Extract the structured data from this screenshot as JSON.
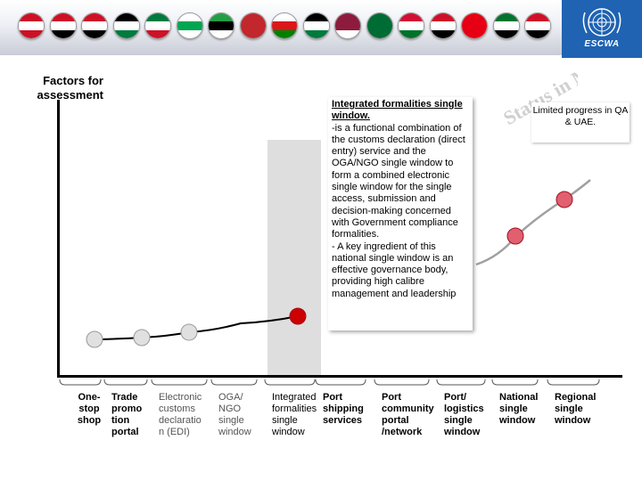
{
  "header": {
    "org": "ESCWA",
    "flag_colors": [
      [
        "#cc1126",
        "#ffffff",
        "#cc1126"
      ],
      [
        "#ce1126",
        "#ffffff",
        "#000000"
      ],
      [
        "#ce1126",
        "#ffffff",
        "#000000"
      ],
      [
        "#000000",
        "#ffffff",
        "#007a3d"
      ],
      [
        "#007a3d",
        "#ffffff",
        "#ce1126"
      ],
      [
        "#ffffff",
        "#00a651",
        "#ffffff"
      ],
      [
        "#239e46",
        "#000000",
        "#ffffff"
      ],
      [
        "#c1272d",
        "#c1272d",
        "#c1272d"
      ],
      [
        "#ffffff",
        "#db161b",
        "#008000"
      ],
      [
        "#000000",
        "#ffffff",
        "#007a3d"
      ],
      [
        "#8d1b3d",
        "#8d1b3d",
        "#ffffff"
      ],
      [
        "#006c35",
        "#006c35",
        "#006c35"
      ],
      [
        "#d21034",
        "#ffffff",
        "#007229"
      ],
      [
        "#ce1126",
        "#ffffff",
        "#000000"
      ],
      [
        "#e70013",
        "#e70013",
        "#e70013"
      ],
      [
        "#00732f",
        "#ffffff",
        "#000000"
      ],
      [
        "#ce1126",
        "#ffffff",
        "#000000"
      ]
    ]
  },
  "labels": {
    "factors": "Factors for assessment",
    "status": "Status in MC"
  },
  "callout": {
    "title": "Integrated formalities single window.",
    "body": "-is a functional combination of the customs declaration (direct entry) service and the OGA/NGO single window to form a combined electronic single window for the single access, submission and decision-making concerned with Government compliance formalities.\n- A key ingredient of this national single window is an effective governance body, providing high calibre management and leadership"
  },
  "note": "Limited progress in QA & UAE.",
  "stages": [
    {
      "label": "One-\nstop\nshop",
      "style": "bold"
    },
    {
      "label": "Trade\npromo\ntion\nportal",
      "style": "bold"
    },
    {
      "label": "Electronic\ncustoms\ndeclaratio\nn (EDI)",
      "style": "light"
    },
    {
      "label": "OGA/\nNGO\nsingle\nwindow",
      "style": "light"
    },
    {
      "label": "Integrated\nformalities\nsingle\nwindow",
      "style": "normal"
    },
    {
      "label": "Port\nshipping\nservices",
      "style": "bold"
    },
    {
      "label": "Port\ncommunity\nportal\n/network",
      "style": "bold"
    },
    {
      "label": "Port/\nlogistics\nsingle\nwindow",
      "style": "bold"
    },
    {
      "label": "National\nsingle\nwindow",
      "style": "bold"
    },
    {
      "label": "Regional\nsingle\nwindow",
      "style": "bold"
    }
  ],
  "colors": {
    "marker_default": "#e0e0e0",
    "marker_current": "#cc0000",
    "marker_future": "#e06070",
    "curve": "#000000",
    "curve_future": "#a0a0a0"
  }
}
